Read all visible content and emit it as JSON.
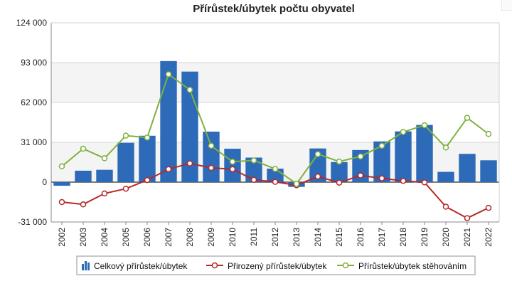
{
  "chart_data": {
    "type": "bar",
    "title": "Přírůstek/úbytek počtu obyvatel",
    "xlabel": "",
    "ylabel": "",
    "ylim": [
      -31000,
      124000
    ],
    "yticks": [
      124000,
      93000,
      62000,
      31000,
      0,
      -31000
    ],
    "ytick_labels": [
      "124 000",
      "93 000",
      "62 000",
      "31 000",
      "0",
      "-31 000"
    ],
    "grid": true,
    "legend_position": "bottom",
    "categories": [
      "2002",
      "2003",
      "2004",
      "2005",
      "2006",
      "2007",
      "2008",
      "2009",
      "2010",
      "2011",
      "2012",
      "2013",
      "2014",
      "2015",
      "2016",
      "2017",
      "2018",
      "2019",
      "2020",
      "2021",
      "2022"
    ],
    "series": [
      {
        "name": "Celkový přírůstek/úbytek",
        "type": "bar",
        "color": "#2d6ab8",
        "values": [
          -2800,
          8900,
          9600,
          30600,
          36100,
          94200,
          86000,
          39300,
          26000,
          19100,
          10500,
          -3700,
          26200,
          15600,
          25000,
          31700,
          39500,
          44500,
          8000,
          22000,
          17000
        ]
      },
      {
        "name": "Přirozený přírůstek/úbytek",
        "type": "line",
        "color": "#b22a2a",
        "values": [
          -15500,
          -17300,
          -8800,
          -5100,
          1600,
          10100,
          14600,
          11100,
          10100,
          1800,
          200,
          -2400,
          4400,
          -400,
          5200,
          3000,
          1000,
          -200,
          -19100,
          -28000,
          -20000
        ]
      },
      {
        "name": "Přírůstek/úbytek stěhováním",
        "type": "line",
        "color": "#7fb13e",
        "values": [
          12300,
          26000,
          18600,
          36200,
          34700,
          83900,
          71800,
          28300,
          15900,
          16900,
          10300,
          -1300,
          21800,
          16000,
          20000,
          28300,
          39000,
          44300,
          26900,
          50000,
          37500
        ]
      }
    ]
  }
}
